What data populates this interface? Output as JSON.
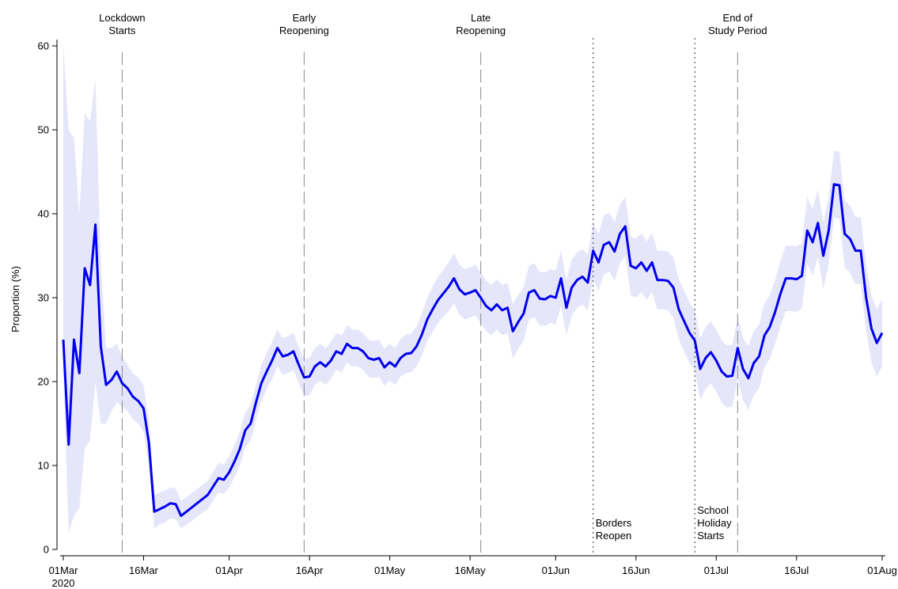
{
  "chart_data": {
    "type": "line",
    "ylabel": "Proportion (%)",
    "xlabel": "",
    "ylim": [
      0,
      60
    ],
    "xlim": [
      "2020-03-01",
      "2020-08-01"
    ],
    "y_ticks": [
      0,
      10,
      20,
      30,
      40,
      50,
      60
    ],
    "x_ticks": [
      {
        "date": "2020-03-01",
        "label": "01Mar",
        "sublabel": "2020"
      },
      {
        "date": "2020-03-16",
        "label": "16Mar"
      },
      {
        "date": "2020-04-01",
        "label": "01Apr"
      },
      {
        "date": "2020-04-16",
        "label": "16Apr"
      },
      {
        "date": "2020-05-01",
        "label": "01May"
      },
      {
        "date": "2020-05-16",
        "label": "16May"
      },
      {
        "date": "2020-06-01",
        "label": "01Jun"
      },
      {
        "date": "2020-06-16",
        "label": "16Jun"
      },
      {
        "date": "2020-07-01",
        "label": "01Jul"
      },
      {
        "date": "2020-07-16",
        "label": "16Jul"
      },
      {
        "date": "2020-08-01",
        "label": "01Aug"
      }
    ],
    "line_color": "#0000ee",
    "band_color": "#e6e6fb",
    "events": [
      {
        "date": "2020-03-12",
        "style": "dashed",
        "label_lines": [
          "Lockdown",
          "Starts"
        ],
        "position": "top"
      },
      {
        "date": "2020-04-15",
        "style": "dashed",
        "label_lines": [
          "Early",
          "Reopening"
        ],
        "position": "top"
      },
      {
        "date": "2020-05-18",
        "style": "dashed",
        "label_lines": [
          "Late",
          "Reopening"
        ],
        "position": "top"
      },
      {
        "date": "2020-06-08",
        "style": "dotted",
        "label_lines": [
          "Borders",
          "Reopen"
        ],
        "position": "bottom"
      },
      {
        "date": "2020-06-27",
        "style": "dotted",
        "label_lines": [
          "School",
          "Holiday",
          "Starts"
        ],
        "position": "bottom"
      },
      {
        "date": "2020-07-05",
        "style": "dashed",
        "label_lines": [
          "End of",
          "Study Period"
        ],
        "position": "top"
      }
    ],
    "series": [
      {
        "values": [
          [
            "2020-03-01",
            25,
            21,
            61
          ],
          [
            "2020-03-02",
            12.5,
            2,
            50
          ],
          [
            "2020-03-03",
            25,
            4,
            49
          ],
          [
            "2020-03-04",
            21,
            5,
            40
          ],
          [
            "2020-03-05",
            33.5,
            12,
            52
          ],
          [
            "2020-03-06",
            31.5,
            13,
            51
          ],
          [
            "2020-03-07",
            38.7,
            20,
            56
          ],
          [
            "2020-03-08",
            24.2,
            15,
            34
          ],
          [
            "2020-03-09",
            19.6,
            15,
            24
          ],
          [
            "2020-03-10",
            20.2,
            16.5,
            24
          ],
          [
            "2020-03-11",
            21.2,
            17.5,
            24.5
          ],
          [
            "2020-03-12",
            19.8,
            17,
            23
          ],
          [
            "2020-03-13",
            19.2,
            16.5,
            22
          ],
          [
            "2020-03-14",
            18.2,
            15.5,
            21
          ],
          [
            "2020-03-15",
            17.7,
            15,
            20.5
          ],
          [
            "2020-03-16",
            16.8,
            14,
            19.5
          ],
          [
            "2020-03-17",
            12.7,
            10,
            15.5
          ],
          [
            "2020-03-18",
            4.5,
            2.5,
            6.5
          ],
          [
            "2020-03-19",
            4.8,
            3,
            6.8
          ],
          [
            "2020-03-20",
            5.1,
            3.2,
            7
          ],
          [
            "2020-03-21",
            5.5,
            3.7,
            7.4
          ],
          [
            "2020-03-22",
            5.4,
            3.6,
            7.3
          ],
          [
            "2020-03-23",
            4,
            2.5,
            5.8
          ],
          [
            "2020-03-24",
            4.5,
            3,
            6.2
          ],
          [
            "2020-03-25",
            5,
            3.4,
            6.7
          ],
          [
            "2020-03-26",
            5.5,
            3.9,
            7.2
          ],
          [
            "2020-03-27",
            6,
            4.4,
            7.7
          ],
          [
            "2020-03-28",
            6.5,
            4.8,
            8.2
          ],
          [
            "2020-03-29",
            7.5,
            5.8,
            9.2
          ],
          [
            "2020-03-30",
            8.5,
            6.8,
            10.3
          ],
          [
            "2020-03-31",
            8.3,
            6.6,
            10.1
          ],
          [
            "2020-04-01",
            9.2,
            7.4,
            11.1
          ],
          [
            "2020-04-02",
            10.5,
            8.6,
            12.5
          ],
          [
            "2020-04-03",
            12,
            10,
            14
          ],
          [
            "2020-04-04",
            14.2,
            12.2,
            16.3
          ],
          [
            "2020-04-05",
            15,
            13,
            17.2
          ],
          [
            "2020-04-06",
            17.5,
            15.4,
            19.6
          ],
          [
            "2020-04-07",
            19.8,
            17.7,
            22
          ],
          [
            "2020-04-08",
            21.2,
            19.1,
            23.4
          ],
          [
            "2020-04-09",
            22.5,
            20.3,
            24.7
          ],
          [
            "2020-04-10",
            24,
            21.8,
            26.2
          ],
          [
            "2020-04-11",
            23,
            20.8,
            25.2
          ],
          [
            "2020-04-12",
            23.2,
            21,
            25.4
          ],
          [
            "2020-04-13",
            23.6,
            21.4,
            25.8
          ],
          [
            "2020-04-14",
            22,
            19.8,
            24.2
          ],
          [
            "2020-04-15",
            20.5,
            18.3,
            22.7
          ],
          [
            "2020-04-16",
            20.6,
            18.4,
            22.8
          ],
          [
            "2020-04-17",
            21.8,
            19.6,
            24
          ],
          [
            "2020-04-18",
            22.3,
            20.1,
            24.5
          ],
          [
            "2020-04-19",
            21.8,
            19.6,
            24
          ],
          [
            "2020-04-20",
            22.5,
            20.3,
            24.7
          ],
          [
            "2020-04-21",
            23.6,
            21.4,
            25.8
          ],
          [
            "2020-04-22",
            23.3,
            21.1,
            25.5
          ],
          [
            "2020-04-23",
            24.5,
            22.3,
            26.7
          ],
          [
            "2020-04-24",
            24,
            21.8,
            26.2
          ],
          [
            "2020-04-25",
            24,
            21.8,
            26.2
          ],
          [
            "2020-04-26",
            23.6,
            21.4,
            25.8
          ],
          [
            "2020-04-27",
            22.8,
            20.6,
            25
          ],
          [
            "2020-04-28",
            22.6,
            20.4,
            24.8
          ],
          [
            "2020-04-29",
            22.8,
            20.6,
            25
          ],
          [
            "2020-04-30",
            21.7,
            19.5,
            23.9
          ],
          [
            "2020-05-01",
            22.3,
            20.1,
            24.5
          ],
          [
            "2020-05-02",
            21.8,
            19.6,
            24
          ],
          [
            "2020-05-03",
            22.8,
            20.6,
            25
          ],
          [
            "2020-05-04",
            23.3,
            21,
            25.6
          ],
          [
            "2020-05-05",
            23.4,
            21.1,
            25.7
          ],
          [
            "2020-05-06",
            24.2,
            21.8,
            26.6
          ],
          [
            "2020-05-07",
            25.6,
            23.1,
            28.1
          ],
          [
            "2020-05-08",
            27.4,
            24.8,
            30
          ],
          [
            "2020-05-09",
            28.6,
            25.9,
            31.3
          ],
          [
            "2020-05-10",
            29.7,
            27,
            32.5
          ],
          [
            "2020-05-11",
            30.5,
            27.7,
            33.3
          ],
          [
            "2020-05-12",
            31.3,
            28.4,
            34.2
          ],
          [
            "2020-05-13",
            32.3,
            29.3,
            35.3
          ],
          [
            "2020-05-14",
            31,
            28,
            34
          ],
          [
            "2020-05-15",
            30.4,
            27.4,
            33.4
          ],
          [
            "2020-05-16",
            30.6,
            27.6,
            33.6
          ],
          [
            "2020-05-17",
            30.9,
            27.9,
            33.9
          ],
          [
            "2020-05-18",
            30,
            27,
            33
          ],
          [
            "2020-05-19",
            29,
            26,
            32
          ],
          [
            "2020-05-20",
            28.5,
            25.5,
            31.5
          ],
          [
            "2020-05-21",
            29.2,
            26.2,
            32.2
          ],
          [
            "2020-05-22",
            28.5,
            25.5,
            31.5
          ],
          [
            "2020-05-23",
            28.8,
            25.8,
            31.8
          ],
          [
            "2020-05-24",
            26,
            22.8,
            29.2
          ],
          [
            "2020-05-25",
            27.1,
            23.9,
            30.3
          ],
          [
            "2020-05-26",
            28.1,
            24.9,
            31.3
          ],
          [
            "2020-05-27",
            30.6,
            27.4,
            33.8
          ],
          [
            "2020-05-28",
            30.9,
            27.7,
            34.1
          ],
          [
            "2020-05-29",
            29.9,
            26.7,
            33.1
          ],
          [
            "2020-05-30",
            29.8,
            26.6,
            33
          ],
          [
            "2020-05-31",
            30.2,
            27,
            33.4
          ],
          [
            "2020-06-01",
            30,
            26.8,
            33.2
          ],
          [
            "2020-06-02",
            32.3,
            29,
            35.6
          ],
          [
            "2020-06-03",
            28.8,
            25.5,
            32.1
          ],
          [
            "2020-06-04",
            31.2,
            27.9,
            34.5
          ],
          [
            "2020-06-05",
            32.1,
            28.8,
            35.4
          ],
          [
            "2020-06-06",
            32.5,
            29.2,
            35.8
          ],
          [
            "2020-06-07",
            31.8,
            28.5,
            35.1
          ],
          [
            "2020-06-08",
            35.6,
            32.2,
            39
          ],
          [
            "2020-06-09",
            34.2,
            30.8,
            37.6
          ],
          [
            "2020-06-10",
            36.3,
            32.8,
            39.8
          ],
          [
            "2020-06-11",
            36.6,
            33.1,
            40.1
          ],
          [
            "2020-06-12",
            35.5,
            32,
            39
          ],
          [
            "2020-06-13",
            37.6,
            34.1,
            41.1
          ],
          [
            "2020-06-14",
            38.5,
            35,
            42
          ],
          [
            "2020-06-15",
            33.8,
            30.3,
            37.3
          ],
          [
            "2020-06-16",
            33.5,
            30,
            37
          ],
          [
            "2020-06-17",
            34.2,
            30.7,
            37.7
          ],
          [
            "2020-06-18",
            33.2,
            29.7,
            36.7
          ],
          [
            "2020-06-19",
            34.2,
            30.7,
            37.7
          ],
          [
            "2020-06-20",
            32.1,
            28.6,
            35.6
          ],
          [
            "2020-06-21",
            32.1,
            28.6,
            35.6
          ],
          [
            "2020-06-22",
            32,
            28.5,
            35.5
          ],
          [
            "2020-06-23",
            31.2,
            27.6,
            34.8
          ],
          [
            "2020-06-24",
            28.6,
            25,
            32.2
          ],
          [
            "2020-06-25",
            27.2,
            23.6,
            30.8
          ],
          [
            "2020-06-26",
            25.8,
            22.2,
            29.4
          ],
          [
            "2020-06-27",
            24.9,
            21.3,
            28.5
          ],
          [
            "2020-06-28",
            21.5,
            17.8,
            25.2
          ],
          [
            "2020-06-29",
            22.8,
            19.1,
            26.5
          ],
          [
            "2020-06-30",
            23.5,
            19.8,
            27.2
          ],
          [
            "2020-07-01",
            22.5,
            18.8,
            26.2
          ],
          [
            "2020-07-02",
            21.2,
            17.5,
            24.9
          ],
          [
            "2020-07-03",
            20.6,
            16.9,
            24.3
          ],
          [
            "2020-07-04",
            20.7,
            17,
            24.4
          ],
          [
            "2020-07-05",
            24,
            20.3,
            27.7
          ],
          [
            "2020-07-06",
            21.5,
            17.8,
            25.2
          ],
          [
            "2020-07-07",
            20.4,
            16.6,
            24.2
          ],
          [
            "2020-07-08",
            22.2,
            18.4,
            26
          ],
          [
            "2020-07-09",
            23,
            19.2,
            26.8
          ],
          [
            "2020-07-10",
            25.5,
            21.7,
            29.3
          ],
          [
            "2020-07-11",
            26.5,
            22.7,
            30.3
          ],
          [
            "2020-07-12",
            28.3,
            24.5,
            32.1
          ],
          [
            "2020-07-13",
            30.5,
            26.6,
            34.4
          ],
          [
            "2020-07-14",
            32.3,
            28.4,
            36.2
          ],
          [
            "2020-07-15",
            32.3,
            28.4,
            36.2
          ],
          [
            "2020-07-16",
            32.2,
            28.3,
            36.1
          ],
          [
            "2020-07-17",
            32.6,
            28.7,
            36.5
          ],
          [
            "2020-07-18",
            38,
            34,
            42
          ],
          [
            "2020-07-19",
            36.6,
            32.6,
            40.6
          ],
          [
            "2020-07-20",
            38.9,
            34.9,
            42.9
          ],
          [
            "2020-07-21",
            35,
            31,
            39
          ],
          [
            "2020-07-22",
            38,
            34,
            42
          ],
          [
            "2020-07-23",
            43.5,
            39.5,
            47.5
          ],
          [
            "2020-07-24",
            43.4,
            39.4,
            47.4
          ],
          [
            "2020-07-25",
            37.6,
            33.6,
            41.6
          ],
          [
            "2020-07-26",
            37,
            33,
            41
          ],
          [
            "2020-07-27",
            35.6,
            31.6,
            39.6
          ],
          [
            "2020-07-28",
            35.6,
            31.6,
            39.6
          ],
          [
            "2020-07-29",
            30,
            26,
            34
          ],
          [
            "2020-07-30",
            26.3,
            22.3,
            30.3
          ],
          [
            "2020-07-31",
            24.6,
            20.6,
            28.6
          ],
          [
            "2020-08-01",
            25.8,
            21.8,
            29.8
          ]
        ]
      }
    ]
  }
}
